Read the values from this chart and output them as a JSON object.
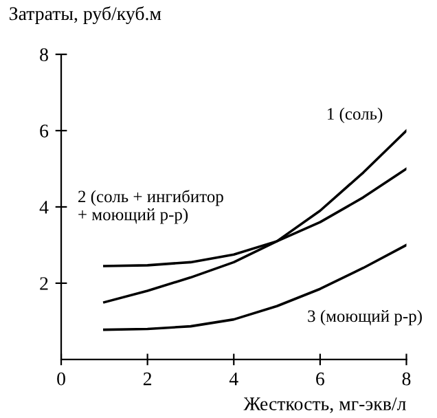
{
  "chart_data": {
    "type": "line",
    "ylabel": "Затраты, руб/куб.м",
    "xlabel": "Жесткость, мг-экв/л",
    "x": [
      1,
      2,
      3,
      4,
      5,
      6,
      7,
      8
    ],
    "series": [
      {
        "name": "1 (соль)",
        "color": "#000000",
        "values": [
          1.5,
          1.8,
          2.15,
          2.55,
          3.1,
          3.9,
          4.9,
          6.0
        ]
      },
      {
        "name": "2 (соль + ингибитор\n+ моющий р-р)",
        "color": "#000000",
        "values": [
          2.45,
          2.47,
          2.55,
          2.75,
          3.1,
          3.6,
          4.25,
          5.0
        ]
      },
      {
        "name": "3 (моющий р-р)",
        "color": "#000000",
        "values": [
          0.78,
          0.8,
          0.87,
          1.05,
          1.4,
          1.85,
          2.4,
          3.0
        ]
      }
    ],
    "xlim": [
      0,
      8
    ],
    "ylim": [
      0,
      8
    ],
    "xticks": [
      0,
      2,
      4,
      6,
      8
    ],
    "yticks": [
      2,
      4,
      6,
      8
    ],
    "grid": false,
    "legend": false,
    "marker": "none",
    "line_style": "solid"
  }
}
